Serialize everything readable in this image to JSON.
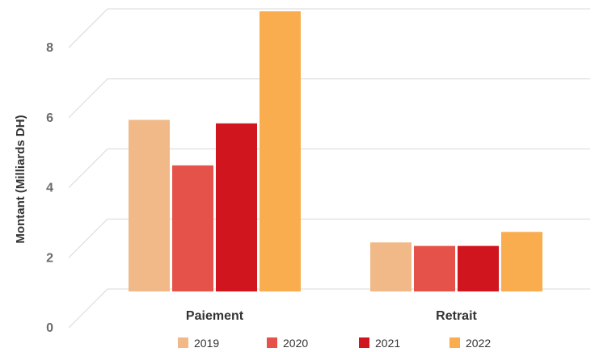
{
  "chart_data": {
    "type": "bar",
    "title": "",
    "xlabel": "",
    "ylabel": "Montant (Milliards DH)",
    "categories": [
      "Paiement",
      "Retrait"
    ],
    "series": [
      {
        "name": "2019",
        "color": "#f0b987",
        "values": [
          4.9,
          1.4
        ]
      },
      {
        "name": "2020",
        "color": "#e5524a",
        "values": [
          3.6,
          1.3
        ]
      },
      {
        "name": "2021",
        "color": "#d0151f",
        "values": [
          4.8,
          1.3
        ]
      },
      {
        "name": "2022",
        "color": "#f9ad4f",
        "values": [
          8.0,
          1.7
        ]
      }
    ],
    "ylim": [
      0,
      8
    ],
    "yticks": [
      "0",
      "2",
      "4",
      "6",
      "8"
    ],
    "grid": true,
    "legend": "bottom"
  }
}
